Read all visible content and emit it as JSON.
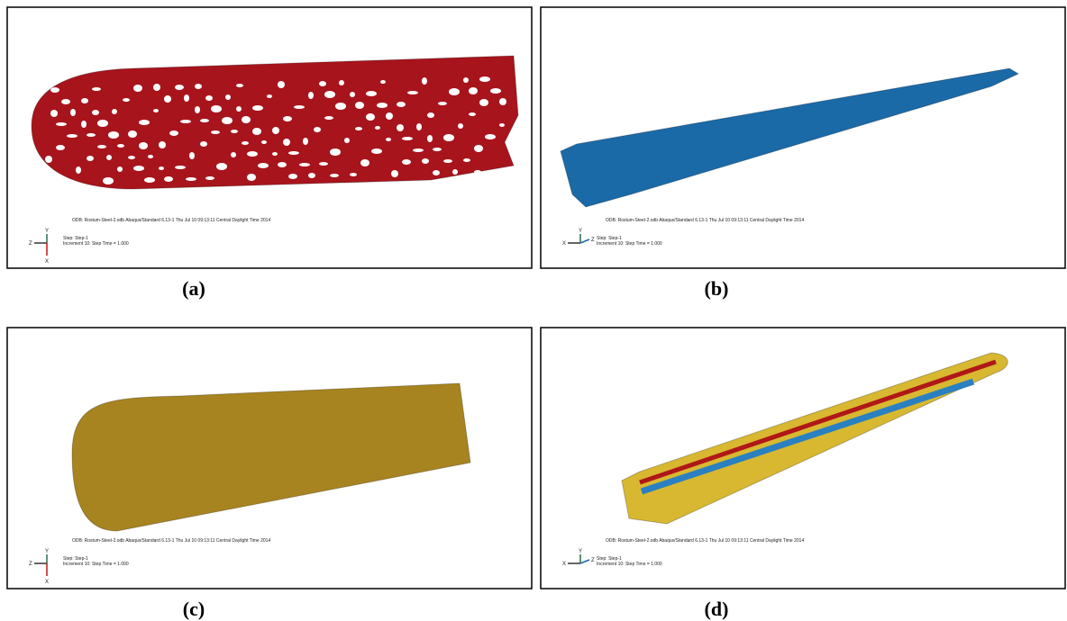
{
  "panels": [
    {
      "caption": "(a)",
      "odb": "ODB: Rostum-Steel-2.odb    Abaqus/Standard 6.13-1    Thu Jul 10 09:13:11 Central Daylight Time 2014",
      "step": "Step: Step-1",
      "increment": "Increment     10: Step Time =     1.000",
      "triad": [
        "Z",
        "Y",
        "X"
      ]
    },
    {
      "caption": "(b)",
      "odb": "ODB: Rostum-Steel-2.odb    Abaqus/Standard 6.13-1    Thu Jul 10 09:13:11 Central Daylight Time 2014",
      "step": "Step: Step-1",
      "increment": "Increment     10: Step Time =     1.000",
      "triad": [
        "X",
        "Y",
        "Z"
      ]
    },
    {
      "caption": "(c)",
      "odb": "ODB: Rostum-Steel-2.odb    Abaqus/Standard 6.13-1    Thu Jul 10 09:13:11 Central Daylight Time 2014",
      "step": "Step: Step-1",
      "increment": "Increment     10: Step Time =     1.000",
      "triad": [
        "Z",
        "Y",
        "X"
      ]
    },
    {
      "caption": "(d)",
      "odb": "ODB: Rostum-Steel-2.odb    Abaqus/Standard 6.13-1    Thu Jul 10 09:13:11 Central Daylight Time 2014",
      "step": "Step: Step-1",
      "increment": "Increment     10: Step Time =     1.000",
      "triad": [
        "X",
        "Y",
        "Z"
      ]
    }
  ]
}
